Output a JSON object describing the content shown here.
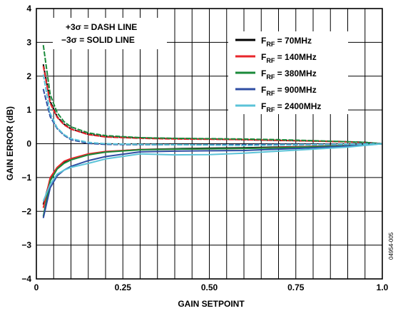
{
  "chart_data": {
    "type": "line",
    "title": "",
    "xlabel": "GAIN SETPOINT",
    "ylabel": "GAIN ERROR (dB)",
    "xlim": [
      0,
      1.0
    ],
    "ylim": [
      -4,
      4
    ],
    "x_ticks": [
      0,
      0.25,
      0.5,
      0.75,
      1.0
    ],
    "x_tick_labels": [
      "0",
      "0.25",
      "0.50",
      "0.75",
      "1.0"
    ],
    "y_ticks": [
      -4,
      -3,
      -2,
      -1,
      0,
      1,
      2,
      3,
      4
    ],
    "y_tick_labels": [
      "−4",
      "−3",
      "−2",
      "−1",
      "0",
      "1",
      "2",
      "3",
      "4"
    ],
    "grid": true,
    "legend_position": "top-right",
    "annotation_lines": [
      "+3σ = DASH LINE",
      "−3σ = SOLID LINE"
    ],
    "figure_id": "04954-005",
    "series": [
      {
        "legend_prefix": "F",
        "legend_sub": "RF",
        "legend_value": " = 70MHz",
        "color": "#000000",
        "x": [
          0.02,
          0.04,
          0.06,
          0.08,
          0.1,
          0.15,
          0.2,
          0.3,
          0.4,
          0.5,
          0.6,
          0.7,
          0.8,
          0.9,
          0.95,
          1.0
        ],
        "upper": [
          2.35,
          1.25,
          0.8,
          0.58,
          0.44,
          0.28,
          0.21,
          0.17,
          0.15,
          0.14,
          0.12,
          0.1,
          0.08,
          0.06,
          0.04,
          0.0
        ],
        "lower": [
          -1.8,
          -1.05,
          -0.72,
          -0.55,
          -0.45,
          -0.31,
          -0.24,
          -0.17,
          -0.15,
          -0.13,
          -0.12,
          -0.1,
          -0.08,
          -0.05,
          -0.03,
          0.0
        ]
      },
      {
        "legend_prefix": "F",
        "legend_sub": "RF",
        "legend_value": " = 140MHz",
        "color": "#e8262b",
        "x": [
          0.02,
          0.04,
          0.06,
          0.08,
          0.1,
          0.15,
          0.2,
          0.3,
          0.4,
          0.5,
          0.6,
          0.7,
          0.8,
          0.9,
          0.95,
          1.0
        ],
        "upper": [
          2.3,
          1.2,
          0.78,
          0.56,
          0.43,
          0.27,
          0.2,
          0.16,
          0.14,
          0.13,
          0.12,
          0.1,
          0.08,
          0.05,
          0.03,
          0.0
        ],
        "lower": [
          -1.9,
          -1.0,
          -0.7,
          -0.52,
          -0.44,
          -0.3,
          -0.23,
          -0.17,
          -0.16,
          -0.15,
          -0.14,
          -0.11,
          -0.08,
          -0.05,
          -0.03,
          0.0
        ]
      },
      {
        "legend_prefix": "F",
        "legend_sub": "RF",
        "legend_value": " = 380MHz",
        "color": "#1a8a3a",
        "x": [
          0.02,
          0.04,
          0.06,
          0.08,
          0.1,
          0.15,
          0.2,
          0.3,
          0.4,
          0.5,
          0.6,
          0.7,
          0.8,
          0.9,
          0.95,
          1.0
        ],
        "upper": [
          2.92,
          1.45,
          0.92,
          0.65,
          0.5,
          0.32,
          0.24,
          0.18,
          0.16,
          0.15,
          0.14,
          0.12,
          0.09,
          0.06,
          0.04,
          0.0
        ],
        "lower": [
          -2.15,
          -1.1,
          -0.75,
          -0.58,
          -0.48,
          -0.33,
          -0.25,
          -0.18,
          -0.16,
          -0.15,
          -0.14,
          -0.12,
          -0.09,
          -0.06,
          -0.03,
          0.0
        ]
      },
      {
        "legend_prefix": "F",
        "legend_sub": "RF",
        "legend_value": " = 900MHz",
        "color": "#2f4ea3",
        "x": [
          0.02,
          0.04,
          0.06,
          0.08,
          0.1,
          0.15,
          0.2,
          0.3,
          0.4,
          0.5,
          0.6,
          0.7,
          0.8,
          0.9,
          0.95,
          1.0
        ],
        "upper": [
          1.62,
          0.8,
          0.45,
          0.25,
          0.12,
          0.01,
          -0.02,
          -0.03,
          -0.03,
          -0.03,
          -0.03,
          -0.02,
          -0.02,
          -0.01,
          0.0,
          0.0
        ],
        "lower": [
          -2.2,
          -1.3,
          -0.95,
          -0.78,
          -0.67,
          -0.5,
          -0.38,
          -0.24,
          -0.22,
          -0.21,
          -0.2,
          -0.16,
          -0.12,
          -0.07,
          -0.04,
          0.0
        ]
      },
      {
        "legend_prefix": "F",
        "legend_sub": "RF",
        "legend_value": " = 2400MHz",
        "color": "#5bc3d8",
        "x": [
          0.02,
          0.04,
          0.06,
          0.08,
          0.1,
          0.15,
          0.2,
          0.3,
          0.4,
          0.5,
          0.6,
          0.7,
          0.8,
          0.9,
          0.95,
          1.0
        ],
        "upper": [
          2.05,
          0.9,
          0.47,
          0.27,
          0.15,
          0.04,
          0.0,
          -0.02,
          -0.03,
          -0.04,
          -0.05,
          -0.04,
          -0.03,
          -0.02,
          -0.01,
          0.0
        ],
        "lower": [
          -1.7,
          -1.2,
          -0.9,
          -0.78,
          -0.7,
          -0.58,
          -0.45,
          -0.3,
          -0.33,
          -0.32,
          -0.28,
          -0.22,
          -0.16,
          -0.1,
          -0.05,
          0.0
        ]
      }
    ]
  }
}
